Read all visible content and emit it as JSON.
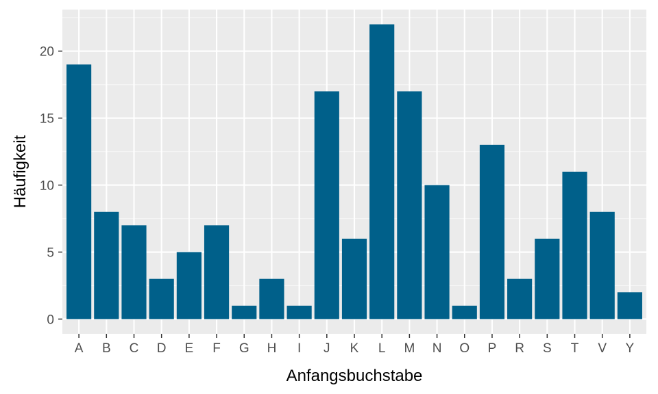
{
  "chart_data": {
    "type": "bar",
    "xlabel": "Anfangsbuchstabe",
    "ylabel": "Häufigkeit",
    "categories": [
      "A",
      "B",
      "C",
      "D",
      "E",
      "F",
      "G",
      "H",
      "I",
      "J",
      "K",
      "L",
      "M",
      "N",
      "O",
      "P",
      "R",
      "S",
      "T",
      "V",
      "Y"
    ],
    "values": [
      19,
      8,
      7,
      3,
      5,
      7,
      1,
      3,
      1,
      17,
      6,
      22,
      17,
      10,
      1,
      13,
      3,
      6,
      11,
      8,
      2
    ],
    "ylim": [
      -1.1,
      23.1
    ],
    "yticks": [
      0,
      5,
      10,
      15,
      20
    ],
    "ytick_labels": [
      "0",
      "5",
      "10",
      "15",
      "20"
    ],
    "grid": true,
    "legend": "none",
    "colors": {
      "bar": "#00608a",
      "panel_background": "#ebebeb",
      "grid_major": "#ffffff",
      "grid_minor": "#f5f5f5",
      "tick_text": "#4d4d4d",
      "tick_mark": "#333333"
    }
  }
}
